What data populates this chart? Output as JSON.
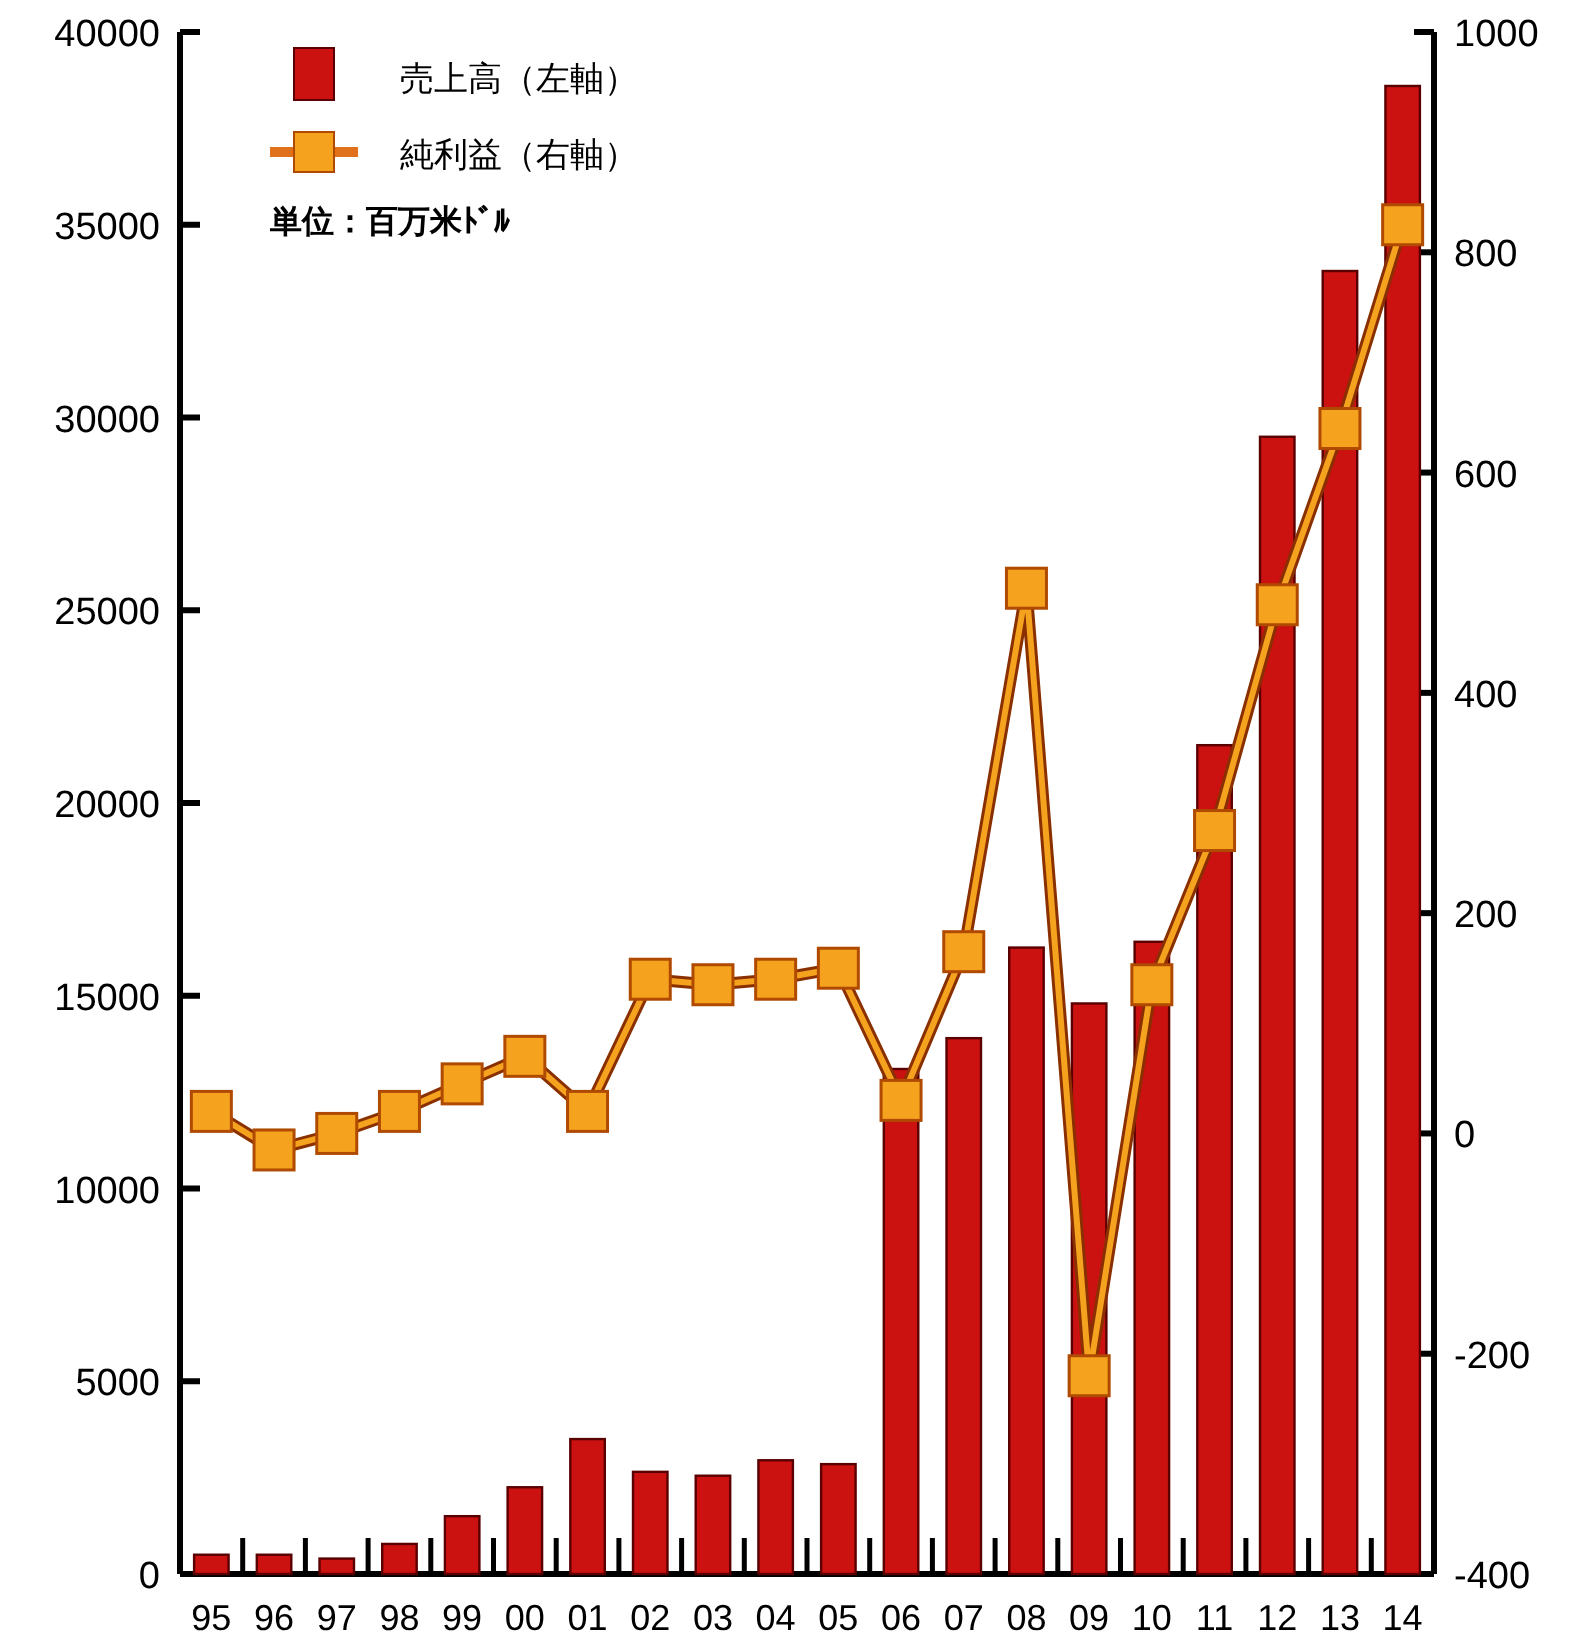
{
  "chart_data": {
    "type": "bar",
    "categories": [
      "95",
      "96",
      "97",
      "98",
      "99",
      "00",
      "01",
      "02",
      "03",
      "04",
      "05",
      "06",
      "07",
      "08",
      "09",
      "10",
      "11",
      "12",
      "13",
      "14"
    ],
    "series": [
      {
        "name": "売上高（左軸）",
        "color": "#cc1111",
        "values": [
          500,
          500,
          400,
          780,
          1500,
          2250,
          3500,
          2650,
          2550,
          2950,
          2850,
          13100,
          13900,
          16250,
          14800,
          16400,
          21500,
          29500,
          33800,
          38600
        ]
      },
      {
        "name": "純利益（右軸）",
        "type": "line",
        "axis": "y2",
        "color": "#f5a21e",
        "marker": "square",
        "values": [
          20,
          -15,
          0,
          20,
          45,
          70,
          20,
          140,
          135,
          140,
          150,
          30,
          165,
          495,
          -220,
          135,
          275,
          480,
          640,
          825
        ]
      }
    ],
    "ylim": [
      0,
      40000
    ],
    "yticks": [
      0,
      5000,
      10000,
      15000,
      20000,
      25000,
      30000,
      35000,
      40000
    ],
    "y2lim": [
      -400,
      1000
    ],
    "y2ticks": [
      -400,
      -200,
      0,
      200,
      400,
      600,
      800,
      1000
    ],
    "legend": "top left",
    "annotations": [
      "単位：百万米ﾄﾞﾙ"
    ]
  }
}
